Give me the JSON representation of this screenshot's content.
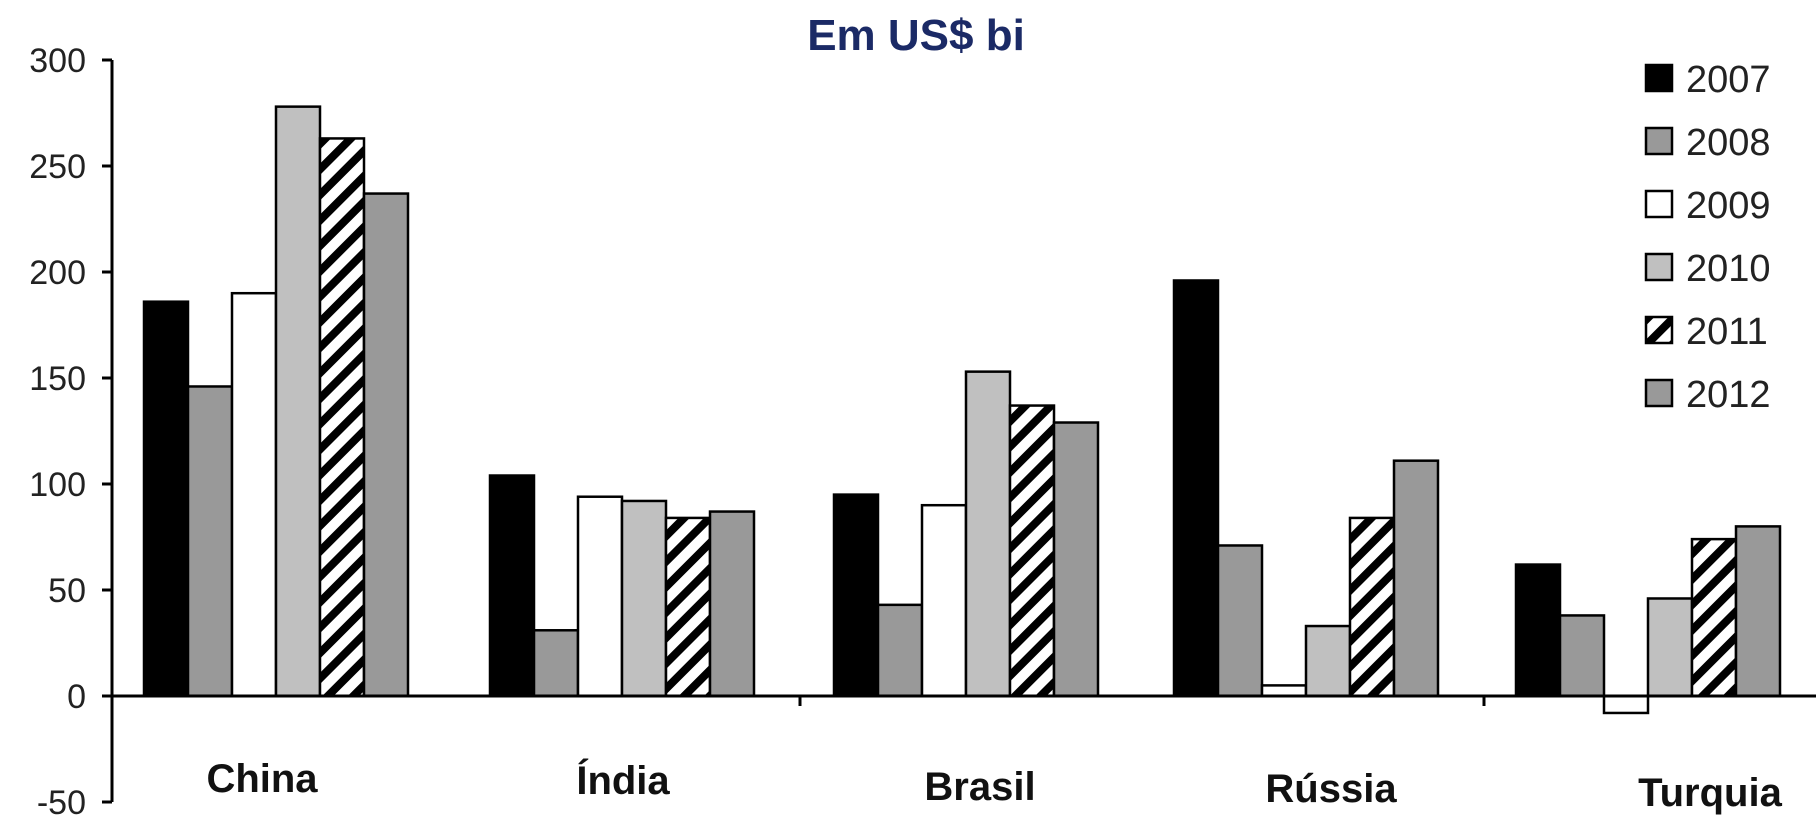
{
  "chart_data": {
    "type": "bar",
    "title": "Em US$ bi",
    "xlabel": "",
    "ylabel": "",
    "ylim": [
      -50,
      300
    ],
    "yticks": [
      300,
      250,
      200,
      150,
      100,
      50,
      0,
      -50
    ],
    "grid": false,
    "legend_position": "top-right",
    "categories": [
      "China",
      "Índia",
      "Brasil",
      "Rússia",
      "Turquia"
    ],
    "series": [
      {
        "name": "2007",
        "pattern": "solid",
        "color": "#000000",
        "values": [
          186,
          104,
          95,
          196,
          62
        ]
      },
      {
        "name": "2008",
        "pattern": "solid",
        "color": "#999999",
        "values": [
          146,
          31,
          43,
          71,
          38
        ]
      },
      {
        "name": "2009",
        "pattern": "solid",
        "color": "#ffffff",
        "values": [
          190,
          94,
          90,
          5,
          -8
        ]
      },
      {
        "name": "2010",
        "pattern": "solid",
        "color": "#c0c0c0",
        "values": [
          278,
          92,
          153,
          33,
          46
        ]
      },
      {
        "name": "2011",
        "pattern": "hatched",
        "color": "#000000",
        "values": [
          263,
          84,
          137,
          84,
          74
        ]
      },
      {
        "name": "2012",
        "pattern": "solid",
        "color": "#999999",
        "values": [
          237,
          87,
          129,
          111,
          80
        ]
      }
    ]
  }
}
